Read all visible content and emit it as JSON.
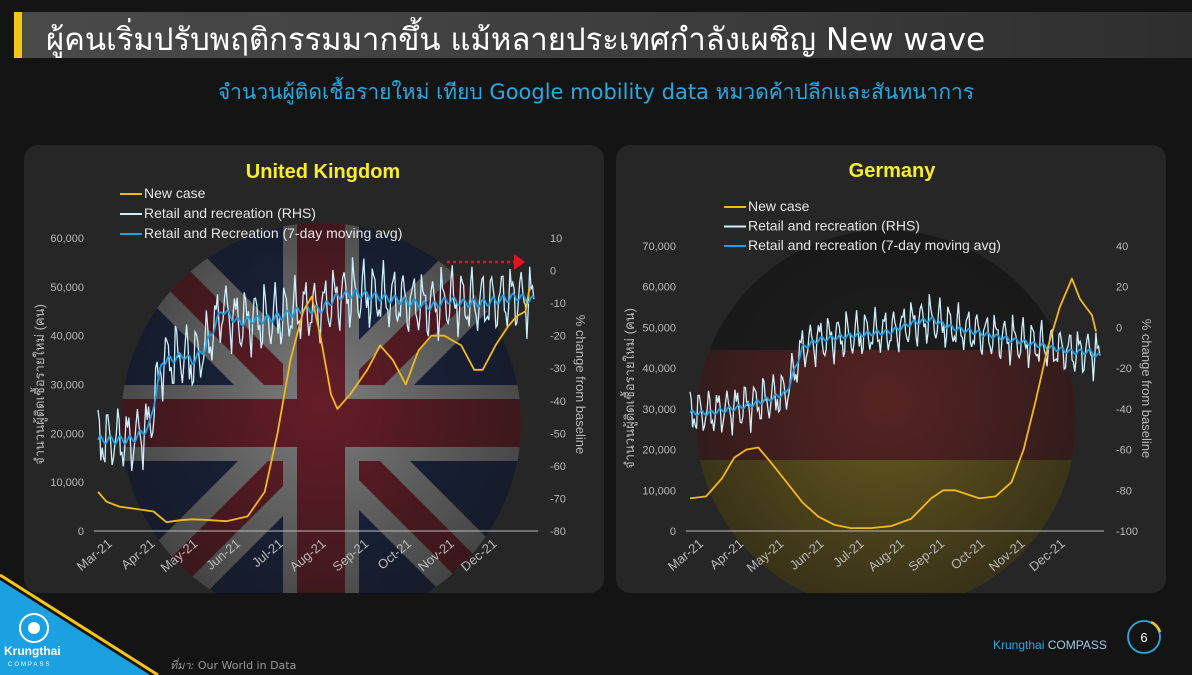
{
  "header": {
    "title": "ผู้คนเริ่มปรับพฤติกรรมมากขึ้น แม้หลายประเทศกำลังเผชิญ New wave",
    "subtitle": "จำนวนผู้ติดเชื้อรายใหม่ เทียบ Google mobility data หมวดค้าปลีกและสันทนาการ"
  },
  "footer": {
    "source_label": "ที่มา:",
    "source_text": "Our World in Data",
    "brand_name": "Krungthai",
    "brand_suffix": "COMPASS",
    "page_number": "6",
    "logo_text": "Krungthai",
    "logo_sub": "COMPASS"
  },
  "colors": {
    "new_case": "#f2b81e",
    "retail": "#cdeffc",
    "retail_avg": "#1ea0e6",
    "title_yellow": "#f7ec2d",
    "accent_blue": "#27a9e1",
    "arrow_red": "#e3121b"
  },
  "chart_data": [
    {
      "type": "line",
      "title": "United Kingdom",
      "legend": [
        "New case",
        "Retail and recreation (RHS)",
        "Retail and Recreation (7-day moving avg)"
      ],
      "legend_placement": "top",
      "ylabel": "จำนวนผู้ติดเชื้อรายใหม่ (คน)",
      "y2label": "% change from baseline",
      "ylim": [
        0,
        60000
      ],
      "y2lim": [
        -80,
        10
      ],
      "yticks": [
        "0",
        "10,000",
        "20,000",
        "30,000",
        "40,000",
        "50,000",
        "60,000"
      ],
      "y2ticks": [
        "-80",
        "-70",
        "-60",
        "-50",
        "-40",
        "-30",
        "-20",
        "-10",
        "0",
        "10"
      ],
      "xticks": [
        "Mar-21",
        "Apr-21",
        "May-21",
        "Jun-21",
        "Jul-21",
        "Aug-21",
        "Sep-21",
        "Oct-21",
        "Nov-21",
        "Dec-21"
      ],
      "x_range_months": [
        0,
        10.2
      ],
      "new_case": {
        "name": "New case",
        "x_month": [
          0,
          0.2,
          0.5,
          0.9,
          1.3,
          1.6,
          1.9,
          2.2,
          2.5,
          3.0,
          3.5,
          3.9,
          4.2,
          4.5,
          4.8,
          5.0,
          5.2,
          5.45,
          5.6,
          5.9,
          6.3,
          6.6,
          6.9,
          7.2,
          7.5,
          7.8,
          8.1,
          8.5,
          8.8,
          9.0,
          9.3,
          9.6,
          9.8,
          10.0,
          10.1
        ],
        "values": [
          8000,
          6000,
          5000,
          4500,
          4000,
          1800,
          2200,
          2400,
          2300,
          2000,
          3000,
          8000,
          20000,
          35000,
          45000,
          48000,
          40000,
          28000,
          25000,
          28000,
          33000,
          38000,
          35000,
          30000,
          37000,
          40000,
          40000,
          38000,
          33000,
          33000,
          38000,
          42000,
          44000,
          45000,
          50000
        ]
      },
      "retail_avg": {
        "name": "Retail and Recreation (7-day moving avg)",
        "x_month": [
          0,
          0.8,
          1.2,
          1.5,
          1.8,
          2.0,
          2.2,
          2.5,
          2.9,
          3.3,
          3.6,
          3.9,
          4.3,
          4.8,
          5.2,
          5.6,
          6.0,
          6.5,
          7.0,
          7.4,
          7.8,
          8.2,
          8.6,
          9.0,
          9.4,
          9.8,
          10.1
        ],
        "values": [
          -52,
          -52,
          -48,
          -28,
          -27,
          -26,
          -28,
          -24,
          -12,
          -16,
          -15,
          -15,
          -14,
          -12,
          -12,
          -8,
          -7,
          -8,
          -9,
          -10,
          -11,
          -9,
          -10,
          -10,
          -9,
          -8,
          -9
        ]
      },
      "retail_daily_amplitude": 8,
      "arrow": "right"
    },
    {
      "type": "line",
      "title": "Germany",
      "legend": [
        "New case",
        "Retail and recreation (RHS)",
        "Retail and recreation (7-day moving avg)"
      ],
      "legend_placement": "top",
      "ylabel": "จำนวนผู้ติดเชื้อรายใหม่ (คน)",
      "y2label": "% change from baseline",
      "ylim": [
        0,
        70000
      ],
      "y2lim": [
        -100,
        40
      ],
      "yticks": [
        "0",
        "10,000",
        "20,000",
        "30,000",
        "40,000",
        "50,000",
        "60,000",
        "70,000"
      ],
      "y2ticks": [
        "-100",
        "-80",
        "-60",
        "-40",
        "-20",
        "0",
        "20",
        "40"
      ],
      "xticks": [
        "Mar-21",
        "Apr-21",
        "May-21",
        "Jun-21",
        "Jul-21",
        "Aug-21",
        "Sep-21",
        "Oct-21",
        "Nov-21",
        "Dec-21"
      ],
      "x_range_months": [
        0,
        10.2
      ],
      "new_case": {
        "name": "New case",
        "x_month": [
          0,
          0.4,
          0.8,
          1.1,
          1.4,
          1.7,
          2.0,
          2.4,
          2.8,
          3.2,
          3.6,
          4.0,
          4.5,
          5.0,
          5.5,
          6.0,
          6.3,
          6.6,
          6.9,
          7.2,
          7.6,
          8.0,
          8.3,
          8.6,
          8.9,
          9.2,
          9.5,
          9.7,
          9.85,
          10.0,
          10.1
        ],
        "values": [
          8000,
          8500,
          13000,
          18000,
          20000,
          20500,
          17000,
          12000,
          7000,
          3500,
          1500,
          700,
          700,
          1200,
          3000,
          8000,
          10000,
          10000,
          9000,
          8000,
          8500,
          12000,
          20000,
          32000,
          45000,
          55000,
          62000,
          57000,
          55000,
          53000,
          49000
        ]
      },
      "retail_avg": {
        "name": "Retail and recreation (7-day moving avg)",
        "x_month": [
          0,
          0.5,
          1.0,
          1.5,
          2.0,
          2.4,
          2.8,
          3.2,
          3.6,
          4.0,
          4.5,
          5.0,
          5.5,
          6.0,
          6.5,
          7.0,
          7.5,
          8.0,
          8.5,
          9.0,
          9.5,
          10.0,
          10.1
        ],
        "values": [
          -42,
          -42,
          -40,
          -38,
          -35,
          -32,
          -10,
          -6,
          -5,
          -4,
          -3,
          -2,
          2,
          4,
          0,
          -2,
          -4,
          -6,
          -8,
          -10,
          -12,
          -12,
          -14
        ]
      },
      "retail_daily_amplitude": 9
    }
  ]
}
